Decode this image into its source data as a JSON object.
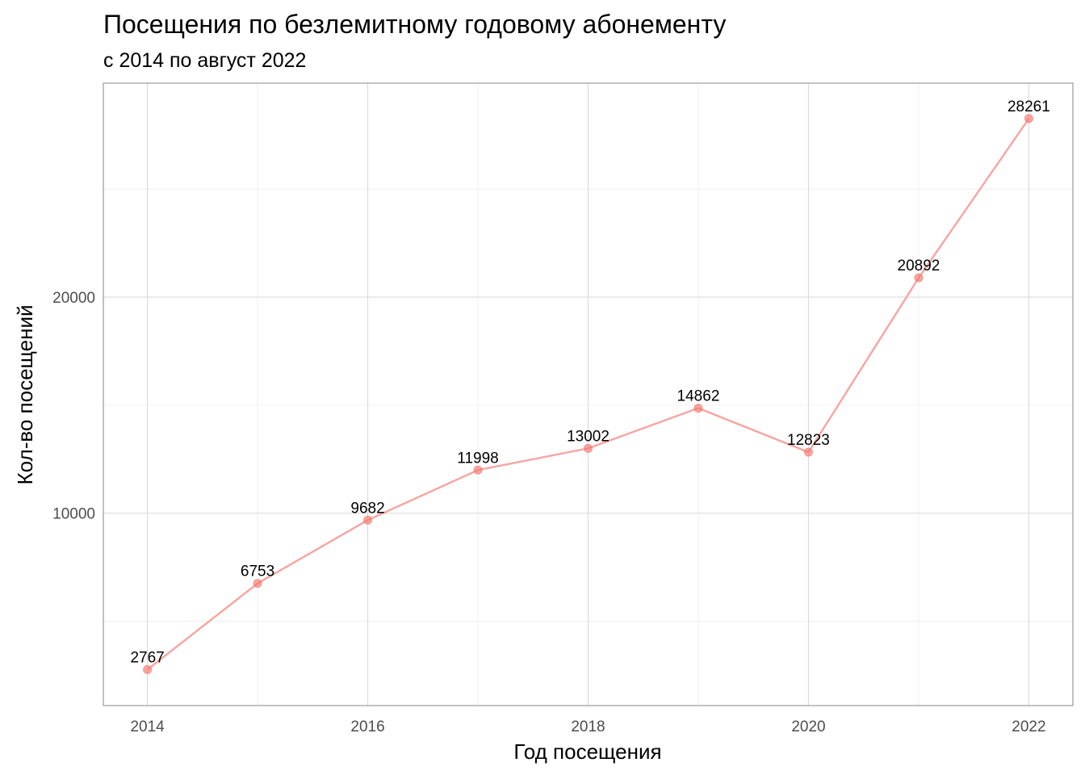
{
  "chart_data": {
    "type": "line",
    "title": "Посещения по безлемитному годовому абонементу",
    "subtitle": "с 2014 по август 2022",
    "xlabel": "Год посещения",
    "ylabel": "Кол-во посещений",
    "x": [
      2014,
      2015,
      2016,
      2017,
      2018,
      2019,
      2020,
      2021,
      2022
    ],
    "values": [
      2767,
      6753,
      9682,
      11998,
      13002,
      14862,
      12823,
      20892,
      28261
    ],
    "x_ticks": [
      "2014",
      "2016",
      "2018",
      "2020",
      "2022"
    ],
    "y_ticks": [
      "10000",
      "20000"
    ],
    "xlim": [
      2013.6,
      2022.4
    ],
    "ylim": [
      1100,
      29900
    ],
    "grid": true,
    "legend": "none",
    "line_color": "#f8a4a0",
    "point_color": "#f8766d"
  }
}
